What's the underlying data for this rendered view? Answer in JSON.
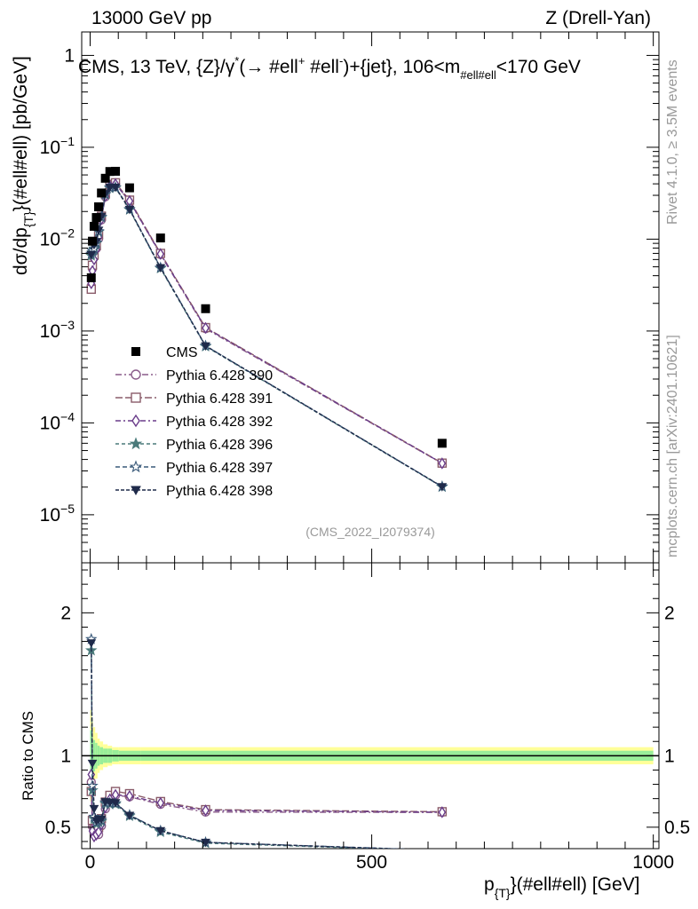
{
  "header": {
    "left": "13000 GeV pp",
    "right": "Z (Drell-Yan)",
    "plot_title": "CMS, 13 TeV, {Z}/γ* (→ #ell+ #ell-)+{jet}, 106<m#ell#ell<170 GeV",
    "title_pre": "CMS, 13 TeV, {Z}/γ",
    "title_sup1": "*",
    "title_mid1": "(→  #ell",
    "title_sup2": "+",
    "title_mid2": " #ell",
    "title_sup3": "-",
    "title_mid3": ")+{jet}, 106<m",
    "title_sub": "#ell#ell",
    "title_end": "<170 GeV"
  },
  "side_labels": {
    "rivet": "Rivet 4.1.0, ≥ 3.5M events",
    "mcplots": "mcplots.cern.ch [arXiv:2401.10621]"
  },
  "chart_data": {
    "type": "scatter",
    "analysis_id": "(CMS_2022_I2079374)",
    "y_axis_main": {
      "label_pre": "dσ/dp",
      "label_sub": "{T}",
      "label_post": "}(#ell#ell) [pb/GeV]",
      "scale": "log",
      "ylim": [
        3e-06,
        1.8
      ],
      "ticks": [
        {
          "value": 1,
          "base": "1",
          "exp": ""
        },
        {
          "value": 0.1,
          "base": "10",
          "exp": "−1"
        },
        {
          "value": 0.01,
          "base": "10",
          "exp": "−2"
        },
        {
          "value": 0.001,
          "base": "10",
          "exp": "−3"
        },
        {
          "value": 0.0001,
          "base": "10",
          "exp": "−4"
        },
        {
          "value": 1e-05,
          "base": "10",
          "exp": "−5"
        }
      ]
    },
    "y_axis_ratio": {
      "label": "Ratio to CMS",
      "scale": "linear",
      "ylim": [
        0.35,
        2.35
      ],
      "ticks": [
        {
          "value": 0.5,
          "label": "0.5"
        },
        {
          "value": 1,
          "label": "1"
        },
        {
          "value": 2,
          "label": "2"
        }
      ]
    },
    "x_axis": {
      "label_pre": "p",
      "label_sub": "{T}",
      "label_post": "}(#ell#ell) [GeV]",
      "xlim": [
        -15,
        1010
      ],
      "ticks": [
        {
          "value": 0,
          "label": "0"
        },
        {
          "value": 500,
          "label": "500"
        },
        {
          "value": 1000,
          "label": "1000"
        }
      ]
    },
    "x": [
      2,
      4,
      7,
      11,
      15,
      20,
      27,
      35,
      45,
      70,
      125,
      205,
      625
    ],
    "band_edges": [
      0,
      3,
      5,
      9,
      13,
      17,
      23,
      31,
      39,
      51,
      90,
      160,
      250,
      1000
    ],
    "band_inner": [
      0.18,
      0.14,
      0.11,
      0.09,
      0.07,
      0.06,
      0.05,
      0.05,
      0.04,
      0.035,
      0.035,
      0.035,
      0.035
    ],
    "band_outer": [
      0.32,
      0.26,
      0.2,
      0.16,
      0.12,
      0.1,
      0.08,
      0.07,
      0.06,
      0.06,
      0.06,
      0.06,
      0.06
    ],
    "data": {
      "name": "CMS",
      "values": [
        0.0038,
        0.0095,
        0.0138,
        0.0172,
        0.0225,
        0.0318,
        0.046,
        0.0545,
        0.0548,
        0.0362,
        0.0103,
        0.00175,
        6e-05
      ]
    },
    "series": [
      {
        "name": "Pythia 6.428 390",
        "marker": "circle",
        "dash": "7 3 2 3",
        "color": "#8a5c8a",
        "values": [
          0.0031,
          0.0048,
          0.0063,
          0.0079,
          0.0101,
          0.0162,
          0.0289,
          0.0376,
          0.0396,
          0.0258,
          0.0068,
          0.00106,
          3.62e-05
        ]
      },
      {
        "name": "Pythia 6.428 391",
        "marker": "square",
        "dash": "8 3",
        "color": "#8a5c6a",
        "values": [
          0.00285,
          0.0052,
          0.0067,
          0.0085,
          0.0112,
          0.0178,
          0.0311,
          0.0394,
          0.0411,
          0.0266,
          0.007,
          0.00109,
          3.65e-05
        ]
      },
      {
        "name": "Pythia 6.428 392",
        "marker": "diamond",
        "dash": "6 3 2 3",
        "color": "#6a3c8a",
        "values": [
          0.0033,
          0.0045,
          0.006,
          0.0077,
          0.0105,
          0.0165,
          0.0294,
          0.0379,
          0.0398,
          0.026,
          0.0069,
          0.00108,
          3.63e-05
        ]
      },
      {
        "name": "Pythia 6.428 396",
        "marker": "star",
        "dash": "4 3",
        "color": "#4a7a7a",
        "values": [
          0.0066,
          0.0072,
          0.0077,
          0.009,
          0.012,
          0.0172,
          0.0306,
          0.036,
          0.0362,
          0.0209,
          0.0048,
          0.00068,
          2.01e-05
        ]
      },
      {
        "name": "Pythia 6.428 397",
        "marker": "star-open",
        "dash": "5 3",
        "color": "#3a5a7a",
        "values": [
          0.0069,
          0.0075,
          0.0079,
          0.0092,
          0.0122,
          0.0175,
          0.031,
          0.0365,
          0.0366,
          0.0212,
          0.0049,
          0.00069,
          2.03e-05
        ]
      },
      {
        "name": "Pythia 6.428 398",
        "marker": "triangle-down",
        "dash": "4 2",
        "color": "#1f2a4a",
        "values": [
          0.0068,
          0.009,
          0.0087,
          0.0094,
          0.0125,
          0.0177,
          0.0312,
          0.0368,
          0.0368,
          0.0211,
          0.0049,
          0.00069,
          2.02e-05
        ]
      }
    ]
  }
}
